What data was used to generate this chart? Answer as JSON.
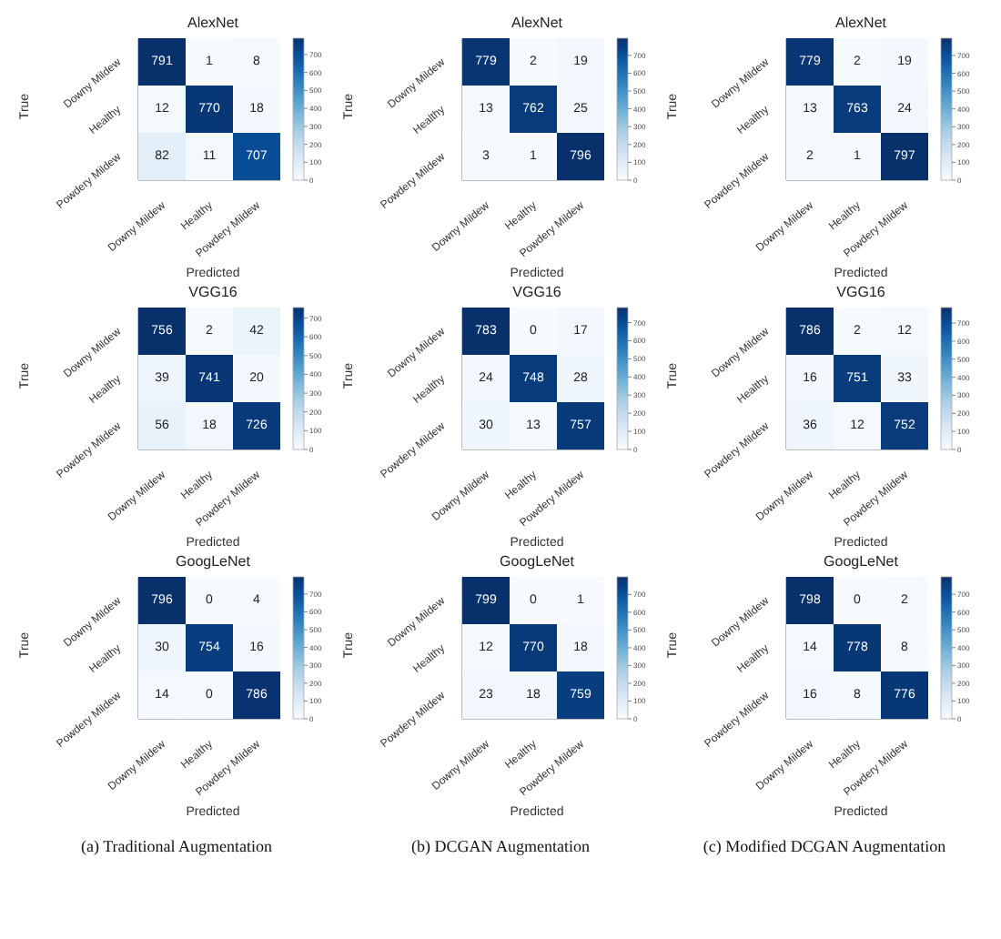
{
  "chart_data": [
    {
      "type": "heatmap",
      "title": "AlexNet",
      "xlabel": "Predicted",
      "ylabel": "True",
      "categories": [
        "Downy Mildew",
        "Healthy",
        "Powdery Mildew"
      ],
      "y_categories": [
        "Downy Mildew",
        "Healthy",
        "Powdery Mildew"
      ],
      "cells": [
        [
          791,
          1,
          8
        ],
        [
          12,
          770,
          18
        ],
        [
          82,
          11,
          707
        ]
      ],
      "data_labels": true,
      "clim": [
        0,
        791
      ],
      "cticks": [
        0,
        100,
        200,
        300,
        400,
        500,
        600,
        700
      ]
    },
    {
      "type": "heatmap",
      "title": "AlexNet",
      "xlabel": "Predicted",
      "ylabel": "True",
      "categories": [
        "Downy Mildew",
        "Healthy",
        "Powdery Mildew"
      ],
      "y_categories": [
        "Downy Mildew",
        "Healthy",
        "Powdery Mildew"
      ],
      "cells": [
        [
          779,
          2,
          19
        ],
        [
          13,
          762,
          25
        ],
        [
          3,
          1,
          796
        ]
      ],
      "data_labels": true,
      "clim": [
        0,
        796
      ],
      "cticks": [
        0,
        100,
        200,
        300,
        400,
        500,
        600,
        700
      ]
    },
    {
      "type": "heatmap",
      "title": "AlexNet",
      "xlabel": "Predicted",
      "ylabel": "True",
      "categories": [
        "Downy Mildew",
        "Healthy",
        "Powdery Mildew"
      ],
      "y_categories": [
        "Downy Mildew",
        "Healthy",
        "Powdery Mildew"
      ],
      "cells": [
        [
          779,
          2,
          19
        ],
        [
          13,
          763,
          24
        ],
        [
          2,
          1,
          797
        ]
      ],
      "data_labels": true,
      "clim": [
        0,
        797
      ],
      "cticks": [
        0,
        100,
        200,
        300,
        400,
        500,
        600,
        700
      ]
    },
    {
      "type": "heatmap",
      "title": "VGG16",
      "xlabel": "Predicted",
      "ylabel": "True",
      "categories": [
        "Downy Mildew",
        "Healthy",
        "Powdery Mildew"
      ],
      "y_categories": [
        "Downy Mildew",
        "Healthy",
        "Powdery Mildew"
      ],
      "cells": [
        [
          756,
          2,
          42
        ],
        [
          39,
          741,
          20
        ],
        [
          56,
          18,
          726
        ]
      ],
      "data_labels": true,
      "clim": [
        0,
        756
      ],
      "cticks": [
        0,
        100,
        200,
        300,
        400,
        500,
        600,
        700
      ]
    },
    {
      "type": "heatmap",
      "title": "VGG16",
      "xlabel": "Predicted",
      "ylabel": "True",
      "categories": [
        "Downy Mildew",
        "Healthy",
        "Powdery Mildew"
      ],
      "y_categories": [
        "Downy Mildew",
        "Healthy",
        "Powdery Mildew"
      ],
      "cells": [
        [
          783,
          0,
          17
        ],
        [
          24,
          748,
          28
        ],
        [
          30,
          13,
          757
        ]
      ],
      "data_labels": true,
      "clim": [
        0,
        783
      ],
      "cticks": [
        0,
        100,
        200,
        300,
        400,
        500,
        600,
        700
      ]
    },
    {
      "type": "heatmap",
      "title": "VGG16",
      "xlabel": "Predicted",
      "ylabel": "True",
      "categories": [
        "Downy Mildew",
        "Healthy",
        "Powdery Mildew"
      ],
      "y_categories": [
        "Downy Mildew",
        "Healthy",
        "Powdery Mildew"
      ],
      "cells": [
        [
          786,
          2,
          12
        ],
        [
          16,
          751,
          33
        ],
        [
          36,
          12,
          752
        ]
      ],
      "data_labels": true,
      "clim": [
        0,
        786
      ],
      "cticks": [
        0,
        100,
        200,
        300,
        400,
        500,
        600,
        700
      ]
    },
    {
      "type": "heatmap",
      "title": "GoogLeNet",
      "xlabel": "Predicted",
      "ylabel": "True",
      "categories": [
        "Downy Mildew",
        "Healthy",
        "Powdery Mildew"
      ],
      "y_categories": [
        "Downy Mildew",
        "Healthy",
        "Powdery Mildew"
      ],
      "cells": [
        [
          796,
          0,
          4
        ],
        [
          30,
          754,
          16
        ],
        [
          14,
          0,
          786
        ]
      ],
      "data_labels": true,
      "clim": [
        0,
        796
      ],
      "cticks": [
        0,
        100,
        200,
        300,
        400,
        500,
        600,
        700
      ],
      "annotations": [
        "(a) Traditional Augmentation"
      ]
    },
    {
      "type": "heatmap",
      "title": "GoogLeNet",
      "xlabel": "Predicted",
      "ylabel": "True",
      "categories": [
        "Downy Mildew",
        "Healthy",
        "Powdery Mildew"
      ],
      "y_categories": [
        "Downy Mildew",
        "Healthy",
        "Powdery Mildew"
      ],
      "cells": [
        [
          799,
          0,
          1
        ],
        [
          12,
          770,
          18
        ],
        [
          23,
          18,
          759
        ]
      ],
      "data_labels": true,
      "clim": [
        0,
        799
      ],
      "cticks": [
        0,
        100,
        200,
        300,
        400,
        500,
        600,
        700
      ],
      "annotations": [
        "(b) DCGAN Augmentation"
      ]
    },
    {
      "type": "heatmap",
      "title": "GoogLeNet",
      "xlabel": "Predicted",
      "ylabel": "True",
      "categories": [
        "Downy Mildew",
        "Healthy",
        "Powdery Mildew"
      ],
      "y_categories": [
        "Downy Mildew",
        "Healthy",
        "Powdery Mildew"
      ],
      "cells": [
        [
          798,
          0,
          2
        ],
        [
          14,
          778,
          8
        ],
        [
          16,
          8,
          776
        ]
      ],
      "data_labels": true,
      "clim": [
        0,
        798
      ],
      "cticks": [
        0,
        100,
        200,
        300,
        400,
        500,
        600,
        700
      ],
      "annotations": [
        "(c) Modified DCGAN Augmentation"
      ]
    }
  ]
}
